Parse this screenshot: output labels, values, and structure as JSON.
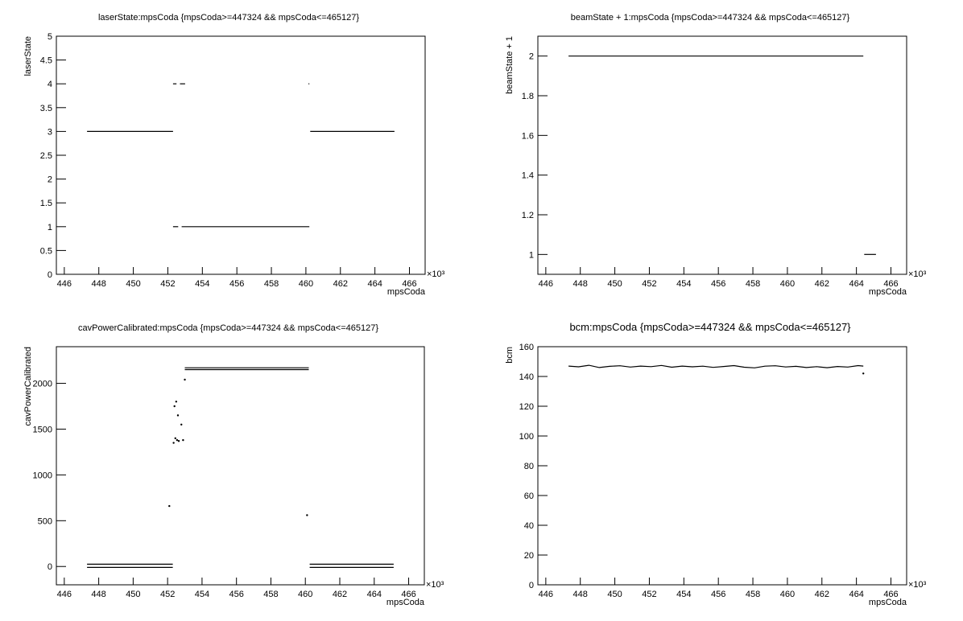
{
  "chart_data": [
    {
      "type": "line",
      "title": "laserState:mpsCoda {mpsCoda>=447324 && mpsCoda<=465127}",
      "xlabel": "mpsCoda",
      "ylabel": "laserState",
      "x_multiplier": "×10³",
      "xlim": [
        445.54,
        466.91
      ],
      "xticks": [
        446,
        448,
        450,
        452,
        454,
        456,
        458,
        460,
        462,
        464,
        466
      ],
      "ylim": [
        0,
        5
      ],
      "yticks": [
        0,
        0.5,
        1,
        1.5,
        2,
        2.5,
        3,
        3.5,
        4,
        4.5,
        5
      ],
      "color": "#000000",
      "x": [
        447.32,
        452.3,
        null,
        452.3,
        452.5,
        null,
        452.7,
        453.0,
        null,
        452.3,
        452.6,
        null,
        452.8,
        460.2,
        null,
        460.15,
        460.2,
        null,
        460.25,
        465.13
      ],
      "values": [
        3,
        3,
        null,
        4,
        4,
        null,
        4,
        4,
        null,
        1,
        1,
        null,
        1,
        1,
        null,
        4,
        4,
        null,
        3,
        3
      ]
    },
    {
      "type": "line",
      "title": "beamState + 1:mpsCoda {mpsCoda>=447324 && mpsCoda<=465127}",
      "xlabel": "mpsCoda",
      "ylabel": "beamState + 1",
      "x_multiplier": "×10³",
      "xlim": [
        445.54,
        466.91
      ],
      "xticks": [
        446,
        448,
        450,
        452,
        454,
        456,
        458,
        460,
        462,
        464,
        466
      ],
      "ylim": [
        0.9,
        2.1
      ],
      "yticks": [
        1,
        1.2,
        1.4,
        1.6,
        1.8,
        2
      ],
      "color": "#000000",
      "x": [
        447.32,
        464.4,
        null,
        464.45,
        465.13
      ],
      "values": [
        2,
        2,
        null,
        1,
        1
      ]
    },
    {
      "type": "line",
      "title": "cavPowerCalibrated:mpsCoda {mpsCoda>=447324 && mpsCoda<=465127}",
      "xlabel": "mpsCoda",
      "ylabel": "cavPowerCalibrated",
      "x_multiplier": "×10³",
      "xlim": [
        445.54,
        466.91
      ],
      "xticks": [
        446,
        448,
        450,
        452,
        454,
        456,
        458,
        460,
        462,
        464,
        466
      ],
      "ylim": [
        -200,
        2400
      ],
      "yticks": [
        0,
        500,
        1000,
        1500,
        2000
      ],
      "color": "#000000",
      "x": [
        447.32,
        452.3,
        null,
        447.32,
        452.3,
        null,
        452.1,
        null,
        452.35,
        null,
        452.4,
        null,
        452.45,
        null,
        452.5,
        null,
        452.55,
        null,
        452.6,
        null,
        452.65,
        null,
        452.8,
        null,
        452.9,
        null,
        453.0,
        460.2,
        null,
        453.0,
        460.2,
        null,
        453.0,
        null,
        460.1,
        null,
        460.25,
        465.13,
        null,
        460.25,
        465.13
      ],
      "values": [
        25,
        25,
        null,
        -10,
        -10,
        null,
        660,
        null,
        1350,
        null,
        1750,
        null,
        1400,
        null,
        1800,
        null,
        1380,
        null,
        1650,
        null,
        1370,
        null,
        1550,
        null,
        1380,
        null,
        2150,
        2150,
        null,
        2170,
        2170,
        null,
        2040,
        null,
        560,
        null,
        25,
        25,
        null,
        -10,
        -10
      ]
    },
    {
      "type": "line",
      "title": "bcm:mpsCoda {mpsCoda>=447324 && mpsCoda<=465127}",
      "xlabel": "mpsCoda",
      "ylabel": "bcm",
      "x_multiplier": "×10³",
      "xlim": [
        445.54,
        466.91
      ],
      "xticks": [
        446,
        448,
        450,
        452,
        454,
        456,
        458,
        460,
        462,
        464,
        466
      ],
      "ylim": [
        0,
        160
      ],
      "yticks": [
        0,
        20,
        40,
        60,
        80,
        100,
        120,
        140,
        160
      ],
      "color": "#000000",
      "x": [
        447.32,
        447.9,
        448.5,
        449.1,
        449.7,
        450.3,
        450.9,
        451.5,
        452.1,
        452.7,
        453.3,
        453.9,
        454.5,
        455.1,
        455.7,
        456.3,
        456.9,
        457.5,
        458.1,
        458.7,
        459.3,
        459.9,
        460.5,
        461.1,
        461.7,
        462.3,
        462.9,
        463.5,
        464.1,
        464.4,
        null,
        464.4
      ],
      "values": [
        147,
        146.5,
        147.5,
        146,
        146.8,
        147.2,
        146.3,
        147,
        146.6,
        147.4,
        146.2,
        147,
        146.5,
        146.9,
        146.1,
        146.7,
        147.3,
        146.2,
        145.8,
        146.9,
        147.2,
        146.4,
        146.8,
        146,
        146.6,
        145.9,
        146.7,
        146.3,
        147.3,
        147,
        null,
        142
      ]
    }
  ]
}
